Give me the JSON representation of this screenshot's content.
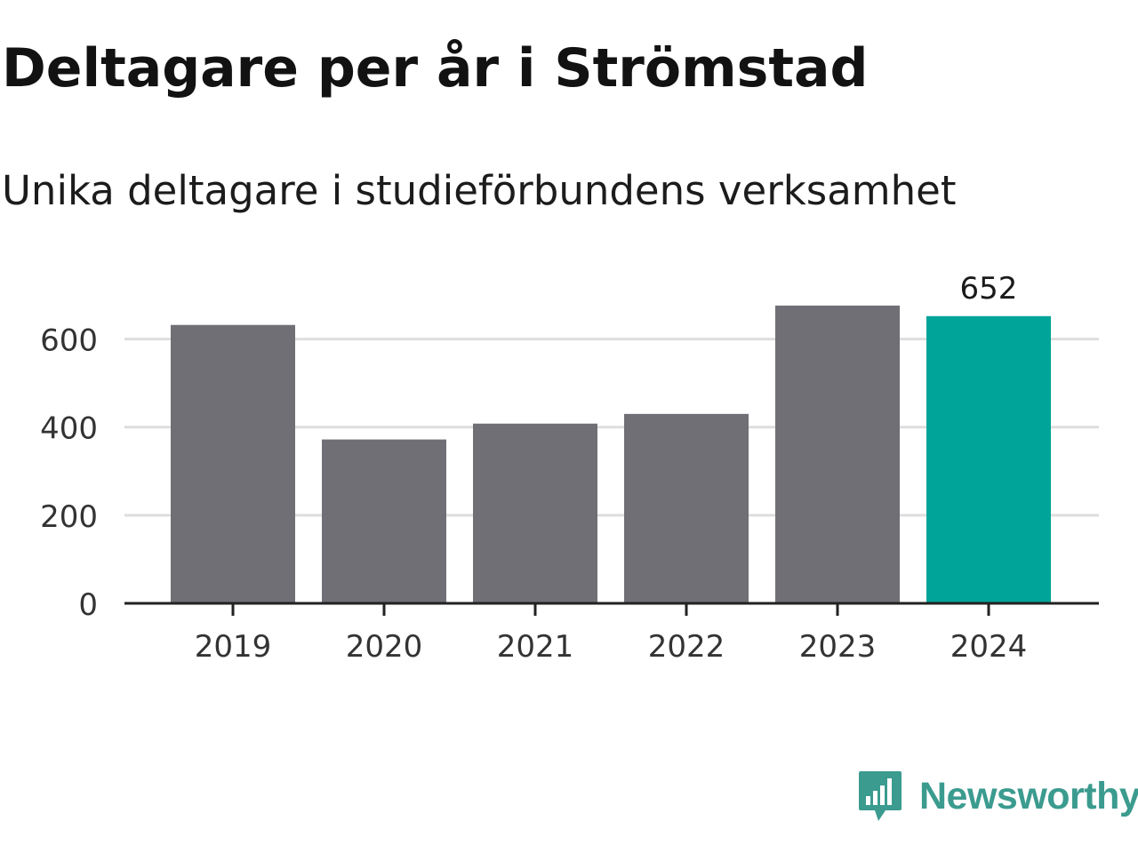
{
  "header": {
    "title": "Deltagare per år i Strömstad",
    "subtitle": "Unika deltagare i studieförbundens verksamhet"
  },
  "brand": {
    "name": "Newsworthy",
    "logo_icon": "bar-chart-speech-bubble-icon",
    "color": "#3b9b8f"
  },
  "chart_data": {
    "type": "bar",
    "categories": [
      "2019",
      "2020",
      "2021",
      "2022",
      "2023",
      "2024"
    ],
    "values": [
      632,
      372,
      408,
      430,
      676,
      652
    ],
    "highlight_index": 5,
    "data_labels": {
      "2024": "652"
    },
    "yticks": [
      "0",
      "200",
      "400",
      "600"
    ],
    "ylim": [
      0,
      700
    ],
    "grid": true,
    "colors": {
      "bar": "#706f75",
      "highlight": "#00a499",
      "grid": "#dedede",
      "axis": "#222222"
    }
  }
}
